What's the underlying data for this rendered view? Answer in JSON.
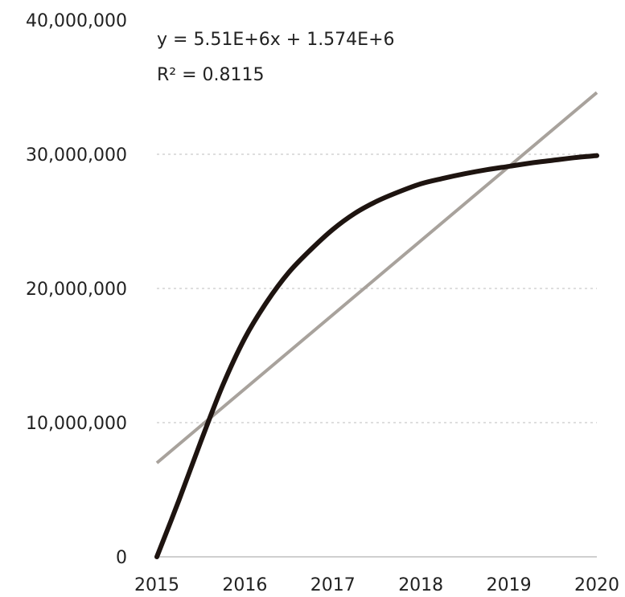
{
  "chart_data": {
    "type": "line",
    "title": "",
    "xlabel": "",
    "ylabel": "",
    "x_ticks": [
      "2015",
      "2016",
      "2017",
      "2018",
      "2019",
      "2020"
    ],
    "y_ticks": [
      "0",
      "10,000,000",
      "20,000,000",
      "30,000,000",
      "40,000,000"
    ],
    "xlim": [
      2015,
      2020
    ],
    "ylim": [
      0,
      40000000
    ],
    "grid": true,
    "series": [
      {
        "color": "#1e1410",
        "x": [
          2015,
          2015.25,
          2015.5,
          2015.75,
          2016,
          2016.25,
          2016.5,
          2016.75,
          2017,
          2017.25,
          2017.5,
          2017.75,
          2018,
          2018.25,
          2018.5,
          2018.75,
          2019,
          2019.25,
          2019.5,
          2019.75,
          2020
        ],
        "y": [
          0,
          4200000,
          8600000,
          12800000,
          16300000,
          19000000,
          21200000,
          22900000,
          24400000,
          25600000,
          26500000,
          27200000,
          27800000,
          28200000,
          28550000,
          28850000,
          29100000,
          29350000,
          29550000,
          29750000,
          29900000
        ]
      }
    ],
    "trendline": {
      "color": "#a8a29c",
      "x": [
        2015,
        2020
      ],
      "y": [
        7000000,
        34600000
      ],
      "equation": "y = 5.51E+6x + 1.574E+6",
      "r_squared": "R² = 0.8115"
    }
  }
}
